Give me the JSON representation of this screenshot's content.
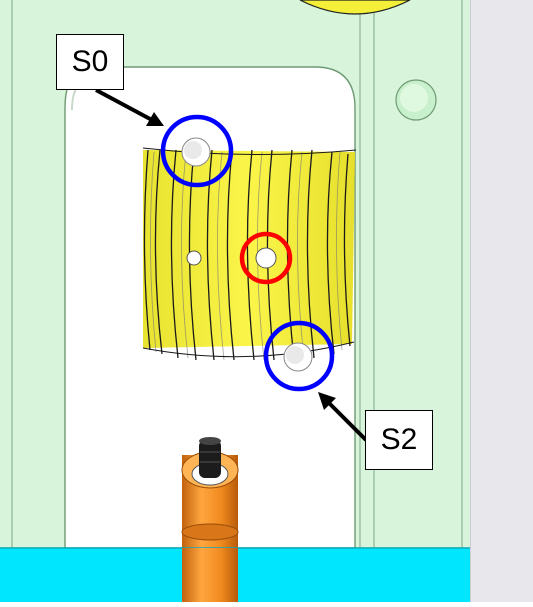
{
  "callouts": {
    "s0": "S0",
    "s2": "S2"
  },
  "colors": {
    "frame": "#d8f4da",
    "frame_edge": "#8fb594",
    "slot_background": "#ffffff",
    "coil": "#f4f03a",
    "coil_groove": "#1a1a1a",
    "marker_blue": "#0000ff",
    "marker_red": "#ff0000",
    "post": "#f08a1e",
    "base_cyan": "#00e6ff",
    "gray_panel": "#e8e8ec"
  },
  "icons": {
    "hole_markers": "circle-outline",
    "arrows": "arrow-pointer"
  }
}
